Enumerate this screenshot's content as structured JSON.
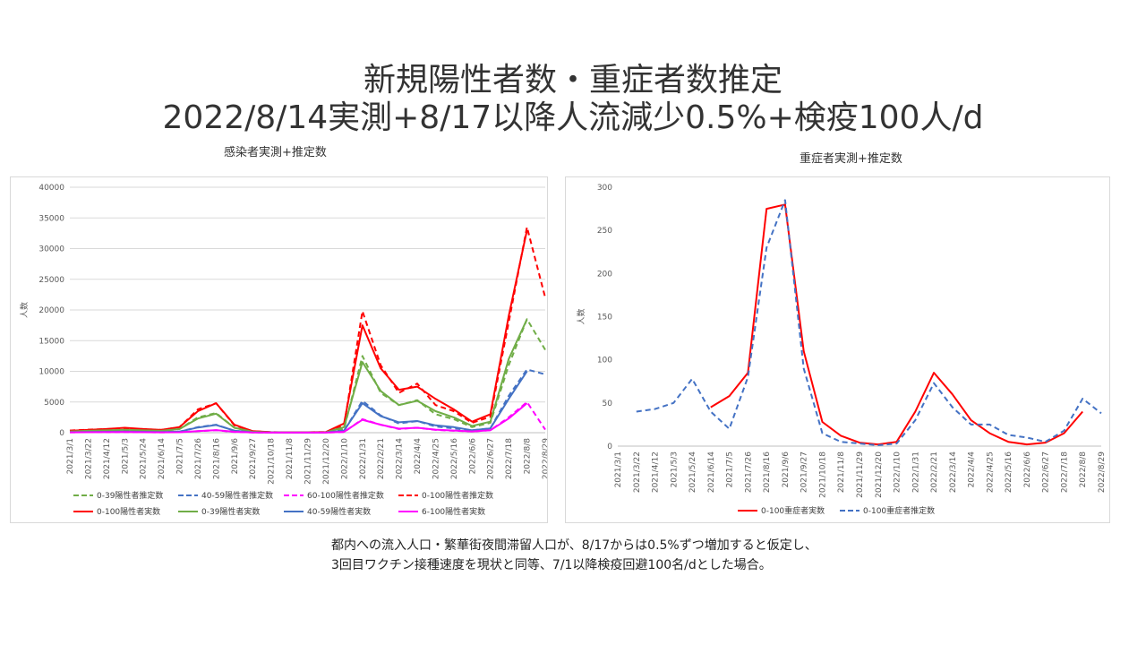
{
  "titles": {
    "line1": "新規陽性者数・重症者数推定",
    "line2": "2022/8/14実測+8/17以降人流減少0.5%+検疫100人/d"
  },
  "footnote": {
    "line1": "都内への流入人口・繁華街夜間滞留人口が、8/17からは0.5%ずつ増加すると仮定し、",
    "line2": "3回目ワクチン接種速度を現状と同等、7/1以降検疫回避100名/dとした場合。"
  },
  "chart_data": [
    {
      "type": "line",
      "title": "感染者実測+推定数",
      "ylabel": "人数",
      "ylim": [
        0,
        40000
      ],
      "yticks": [
        0,
        5000,
        10000,
        15000,
        20000,
        25000,
        30000,
        35000,
        40000
      ],
      "x": [
        "2021/3/1",
        "2021/3/22",
        "2021/4/12",
        "2021/5/3",
        "2021/5/24",
        "2021/6/14",
        "2021/7/5",
        "2021/7/26",
        "2021/8/16",
        "2021/9/6",
        "2021/9/27",
        "2021/10/18",
        "2021/11/8",
        "2021/11/29",
        "2021/12/20",
        "2022/1/10",
        "2022/1/31",
        "2022/2/21",
        "2022/3/14",
        "2022/4/4",
        "2022/4/25",
        "2022/5/16",
        "2022/6/6",
        "2022/6/27",
        "2022/7/18",
        "2022/8/8",
        "2022/8/29"
      ],
      "series": [
        {
          "name": "0-39陽性者推定数",
          "color": "#70ad47",
          "dash": true,
          "values": [
            200,
            300,
            350,
            450,
            350,
            280,
            600,
            2500,
            3200,
            800,
            150,
            60,
            50,
            50,
            60,
            600,
            12500,
            6500,
            4500,
            5300,
            3000,
            2200,
            900,
            1600,
            11000,
            18500,
            13500
          ]
        },
        {
          "name": "40-59陽性者推定数",
          "color": "#4472c4",
          "dash": true,
          "values": [
            90,
            120,
            140,
            180,
            140,
            110,
            180,
            900,
            1300,
            300,
            60,
            25,
            20,
            20,
            25,
            300,
            5200,
            2800,
            1500,
            1900,
            1000,
            700,
            400,
            700,
            6000,
            10300,
            9500
          ]
        },
        {
          "name": "60-100陽性者推定数",
          "color": "#ff00ff",
          "dash": true,
          "values": [
            60,
            70,
            80,
            90,
            80,
            60,
            70,
            250,
            400,
            120,
            30,
            10,
            10,
            10,
            12,
            100,
            2200,
            1300,
            600,
            800,
            450,
            300,
            200,
            400,
            2500,
            5000,
            500
          ]
        },
        {
          "name": "0-100陽性者推定数",
          "color": "#ff0000",
          "dash": true,
          "values": [
            350,
            500,
            580,
            750,
            580,
            450,
            900,
            3800,
            4800,
            1200,
            250,
            90,
            80,
            80,
            100,
            1200,
            19800,
            11000,
            6500,
            8000,
            4500,
            3500,
            1600,
            2600,
            18000,
            33500,
            22000
          ]
        },
        {
          "name": "0-100陽性者実数",
          "color": "#ff0000",
          "dash": false,
          "values": [
            300,
            450,
            600,
            800,
            600,
            450,
            900,
            3500,
            4800,
            1300,
            250,
            90,
            70,
            70,
            100,
            1500,
            17500,
            10500,
            7000,
            7500,
            5500,
            3800,
            1800,
            3000,
            19000,
            33000,
            null
          ]
        },
        {
          "name": "0-39陽性者実数",
          "color": "#70ad47",
          "dash": false,
          "values": [
            200,
            300,
            380,
            480,
            380,
            300,
            600,
            2300,
            3100,
            800,
            150,
            60,
            50,
            50,
            60,
            900,
            11500,
            6800,
            4500,
            5200,
            3500,
            2500,
            1100,
            1800,
            12000,
            18500,
            null
          ]
        },
        {
          "name": "40-59陽性者実数",
          "color": "#4472c4",
          "dash": false,
          "values": [
            80,
            120,
            150,
            190,
            150,
            120,
            180,
            850,
            1250,
            330,
            60,
            25,
            20,
            20,
            25,
            350,
            4800,
            2700,
            1700,
            1900,
            1200,
            900,
            400,
            700,
            5500,
            10000,
            null
          ]
        },
        {
          "name": "6-100陽性者実数",
          "color": "#ff00ff",
          "dash": false,
          "values": [
            60,
            70,
            90,
            100,
            80,
            60,
            70,
            260,
            420,
            140,
            30,
            10,
            10,
            10,
            12,
            150,
            2100,
            1300,
            650,
            800,
            500,
            350,
            200,
            400,
            2300,
            4800,
            null
          ]
        }
      ]
    },
    {
      "type": "line",
      "title": "重症者実測+推定数",
      "ylabel": "人数",
      "ylim": [
        0,
        300
      ],
      "yticks": [
        0,
        50,
        100,
        150,
        200,
        250,
        300
      ],
      "x": [
        "2021/3/1",
        "2021/3/22",
        "2021/4/12",
        "2021/5/3",
        "2021/5/24",
        "2021/6/14",
        "2021/7/5",
        "2021/7/26",
        "2021/8/16",
        "2021/9/6",
        "2021/9/27",
        "2021/10/18",
        "2021/11/8",
        "2021/11/29",
        "2021/12/20",
        "2022/1/10",
        "2022/1/31",
        "2022/2/21",
        "2022/3/14",
        "2022/4/4",
        "2022/4/25",
        "2022/5/16",
        "2022/6/6",
        "2022/6/27",
        "2022/7/18",
        "2022/8/8",
        "2022/8/29"
      ],
      "series": [
        {
          "name": "0-100重症者実数",
          "color": "#ff0000",
          "dash": false,
          "values": [
            null,
            null,
            null,
            null,
            null,
            45,
            58,
            85,
            275,
            280,
            110,
            28,
            12,
            4,
            2,
            5,
            40,
            85,
            60,
            30,
            15,
            5,
            2,
            4,
            15,
            40,
            null
          ]
        },
        {
          "name": "0-100重症者推定数",
          "color": "#4472c4",
          "dash": false,
          "dash2": true,
          "values": [
            null,
            40,
            43,
            50,
            78,
            40,
            20,
            80,
            230,
            285,
            90,
            15,
            5,
            3,
            1,
            3,
            30,
            73,
            45,
            25,
            25,
            13,
            10,
            5,
            18,
            55,
            38
          ]
        }
      ]
    }
  ]
}
